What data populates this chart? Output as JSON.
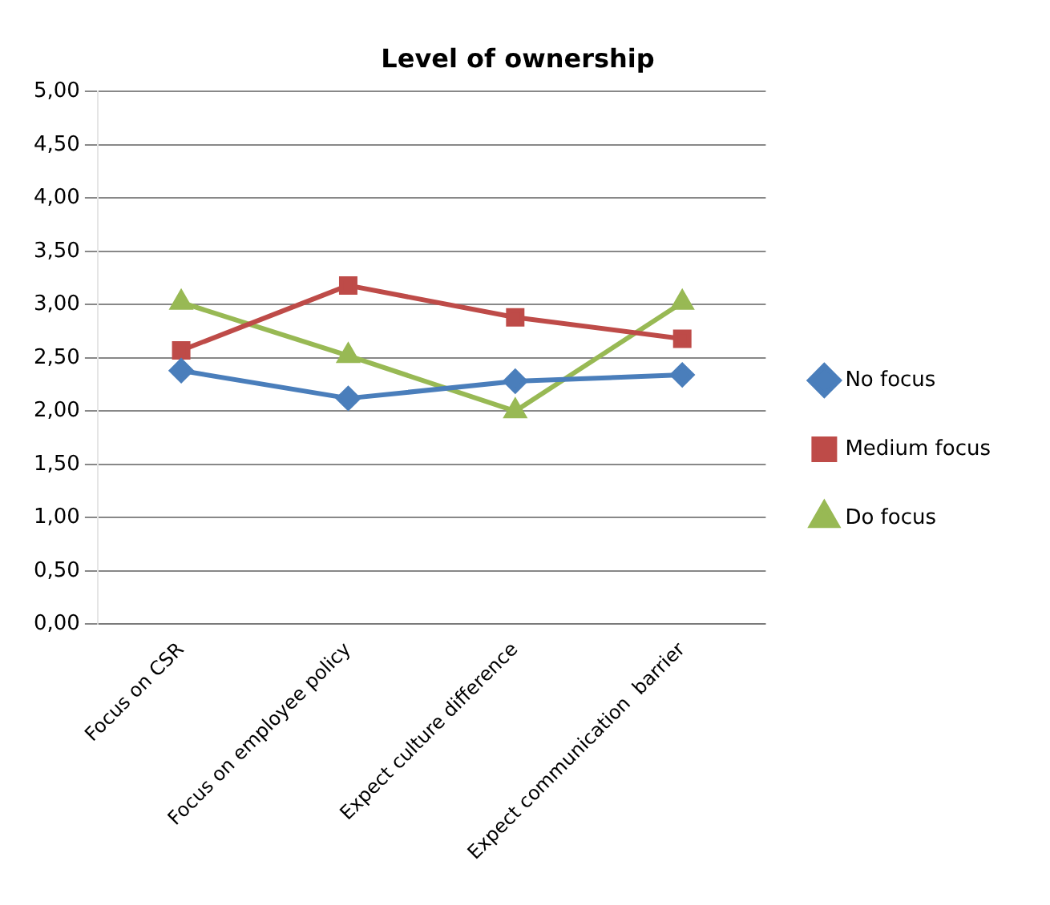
{
  "chart_data": {
    "type": "line",
    "title": "Level of ownership",
    "categories": [
      "Focus on CSR",
      "Focus on employee policy",
      "Expect culture difference",
      "Expect communication  barrier"
    ],
    "series": [
      {
        "name": "No focus",
        "color": "#4a7ebb",
        "marker": "diamond",
        "values": [
          2.38,
          2.12,
          2.28,
          2.34
        ]
      },
      {
        "name": "Medium focus",
        "color": "#be4b48",
        "marker": "square",
        "values": [
          2.57,
          3.18,
          2.88,
          2.68
        ]
      },
      {
        "name": "Do focus",
        "color": "#98b954",
        "marker": "triangle",
        "values": [
          3.02,
          2.52,
          2.0,
          3.02
        ]
      }
    ],
    "ylim": [
      0,
      5
    ],
    "yticks": [
      {
        "value": 0,
        "label": "0,00"
      },
      {
        "value": 0.5,
        "label": "0,50"
      },
      {
        "value": 1,
        "label": "1,00"
      },
      {
        "value": 1.5,
        "label": "1,50"
      },
      {
        "value": 2,
        "label": "2,00"
      },
      {
        "value": 2.5,
        "label": "2,50"
      },
      {
        "value": 3,
        "label": "3,00"
      },
      {
        "value": 3.5,
        "label": "3,50"
      },
      {
        "value": 4,
        "label": "4,00"
      },
      {
        "value": 4.5,
        "label": "4,50"
      },
      {
        "value": 5,
        "label": "5,00"
      }
    ],
    "grid": "y",
    "legend": "right",
    "line_style": "solid"
  }
}
